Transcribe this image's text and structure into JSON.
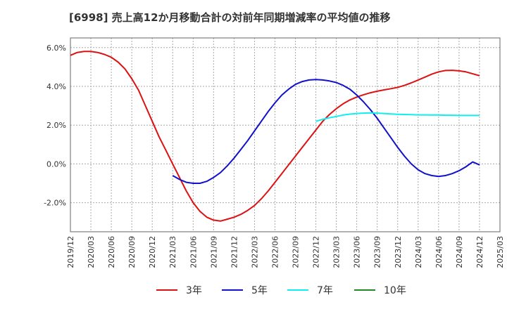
{
  "chart_data": {
    "type": "line",
    "title": "[6998]  売上高12か月移動合計の対前年同期増減率の平均値の推移",
    "xlabel": "",
    "ylabel": "",
    "ylim": [
      -3.5,
      6.5
    ],
    "grid": true,
    "legend_position": "bottom",
    "x_ticks": [
      "2019/12",
      "2020/03",
      "2020/06",
      "2020/09",
      "2020/12",
      "2021/03",
      "2021/06",
      "2021/09",
      "2021/12",
      "2022/03",
      "2022/06",
      "2022/09",
      "2022/12",
      "2023/03",
      "2023/06",
      "2023/09",
      "2023/12",
      "2024/03",
      "2024/06",
      "2024/09",
      "2024/12",
      "2025/03"
    ],
    "y_ticks": [
      {
        "value": 6,
        "label": "6.0%"
      },
      {
        "value": 4,
        "label": "4.0%"
      },
      {
        "value": 2,
        "label": "2.0%"
      },
      {
        "value": 0,
        "label": "0.0%"
      },
      {
        "value": -2,
        "label": "-2.0%"
      }
    ],
    "series": [
      {
        "name": "3年",
        "color": "#dd1111",
        "points": [
          [
            "2019/12",
            5.6
          ],
          [
            "2020/01",
            5.75
          ],
          [
            "2020/02",
            5.8
          ],
          [
            "2020/03",
            5.8
          ],
          [
            "2020/04",
            5.75
          ],
          [
            "2020/05",
            5.65
          ],
          [
            "2020/06",
            5.5
          ],
          [
            "2020/07",
            5.25
          ],
          [
            "2020/08",
            4.9
          ],
          [
            "2020/09",
            4.4
          ],
          [
            "2020/10",
            3.8
          ],
          [
            "2020/11",
            3.0
          ],
          [
            "2020/12",
            2.2
          ],
          [
            "2021/01",
            1.4
          ],
          [
            "2021/02",
            0.7
          ],
          [
            "2021/03",
            0.0
          ],
          [
            "2021/04",
            -0.7
          ],
          [
            "2021/05",
            -1.4
          ],
          [
            "2021/06",
            -2.0
          ],
          [
            "2021/07",
            -2.45
          ],
          [
            "2021/08",
            -2.75
          ],
          [
            "2021/09",
            -2.9
          ],
          [
            "2021/10",
            -2.95
          ],
          [
            "2021/11",
            -2.85
          ],
          [
            "2021/12",
            -2.75
          ],
          [
            "2022/01",
            -2.6
          ],
          [
            "2022/02",
            -2.4
          ],
          [
            "2022/03",
            -2.15
          ],
          [
            "2022/04",
            -1.8
          ],
          [
            "2022/05",
            -1.4
          ],
          [
            "2022/06",
            -0.95
          ],
          [
            "2022/07",
            -0.5
          ],
          [
            "2022/08",
            -0.05
          ],
          [
            "2022/09",
            0.4
          ],
          [
            "2022/10",
            0.85
          ],
          [
            "2022/11",
            1.3
          ],
          [
            "2022/12",
            1.75
          ],
          [
            "2023/01",
            2.2
          ],
          [
            "2023/02",
            2.55
          ],
          [
            "2023/03",
            2.85
          ],
          [
            "2023/04",
            3.1
          ],
          [
            "2023/05",
            3.3
          ],
          [
            "2023/06",
            3.45
          ],
          [
            "2023/07",
            3.57
          ],
          [
            "2023/08",
            3.67
          ],
          [
            "2023/09",
            3.75
          ],
          [
            "2023/10",
            3.82
          ],
          [
            "2023/11",
            3.88
          ],
          [
            "2023/12",
            3.95
          ],
          [
            "2024/01",
            4.05
          ],
          [
            "2024/02",
            4.18
          ],
          [
            "2024/03",
            4.33
          ],
          [
            "2024/04",
            4.48
          ],
          [
            "2024/05",
            4.63
          ],
          [
            "2024/06",
            4.75
          ],
          [
            "2024/07",
            4.82
          ],
          [
            "2024/08",
            4.83
          ],
          [
            "2024/09",
            4.8
          ],
          [
            "2024/10",
            4.75
          ],
          [
            "2024/11",
            4.65
          ],
          [
            "2024/12",
            4.55
          ]
        ]
      },
      {
        "name": "5年",
        "color": "#1111cc",
        "points": [
          [
            "2021/03",
            -0.6
          ],
          [
            "2021/04",
            -0.8
          ],
          [
            "2021/05",
            -0.95
          ],
          [
            "2021/06",
            -1.0
          ],
          [
            "2021/07",
            -1.0
          ],
          [
            "2021/08",
            -0.9
          ],
          [
            "2021/09",
            -0.7
          ],
          [
            "2021/10",
            -0.45
          ],
          [
            "2021/11",
            -0.1
          ],
          [
            "2021/12",
            0.3
          ],
          [
            "2022/01",
            0.75
          ],
          [
            "2022/02",
            1.2
          ],
          [
            "2022/03",
            1.7
          ],
          [
            "2022/04",
            2.2
          ],
          [
            "2022/05",
            2.7
          ],
          [
            "2022/06",
            3.15
          ],
          [
            "2022/07",
            3.55
          ],
          [
            "2022/08",
            3.85
          ],
          [
            "2022/09",
            4.1
          ],
          [
            "2022/10",
            4.25
          ],
          [
            "2022/11",
            4.33
          ],
          [
            "2022/12",
            4.35
          ],
          [
            "2023/01",
            4.33
          ],
          [
            "2023/02",
            4.28
          ],
          [
            "2023/03",
            4.2
          ],
          [
            "2023/04",
            4.05
          ],
          [
            "2023/05",
            3.85
          ],
          [
            "2023/06",
            3.55
          ],
          [
            "2023/07",
            3.2
          ],
          [
            "2023/08",
            2.8
          ],
          [
            "2023/09",
            2.35
          ],
          [
            "2023/10",
            1.85
          ],
          [
            "2023/11",
            1.35
          ],
          [
            "2023/12",
            0.85
          ],
          [
            "2024/01",
            0.4
          ],
          [
            "2024/02",
            0.0
          ],
          [
            "2024/03",
            -0.3
          ],
          [
            "2024/04",
            -0.5
          ],
          [
            "2024/05",
            -0.6
          ],
          [
            "2024/06",
            -0.65
          ],
          [
            "2024/07",
            -0.6
          ],
          [
            "2024/08",
            -0.5
          ],
          [
            "2024/09",
            -0.35
          ],
          [
            "2024/10",
            -0.15
          ],
          [
            "2024/11",
            0.1
          ],
          [
            "2024/12",
            -0.05
          ]
        ]
      },
      {
        "name": "7年",
        "color": "#11eeee",
        "points": [
          [
            "2022/12",
            2.2
          ],
          [
            "2023/01",
            2.3
          ],
          [
            "2023/02",
            2.38
          ],
          [
            "2023/03",
            2.45
          ],
          [
            "2023/04",
            2.52
          ],
          [
            "2023/05",
            2.57
          ],
          [
            "2023/06",
            2.6
          ],
          [
            "2023/07",
            2.62
          ],
          [
            "2023/08",
            2.63
          ],
          [
            "2023/09",
            2.62
          ],
          [
            "2023/10",
            2.6
          ],
          [
            "2023/11",
            2.58
          ],
          [
            "2023/12",
            2.56
          ],
          [
            "2024/01",
            2.55
          ],
          [
            "2024/02",
            2.54
          ],
          [
            "2024/03",
            2.53
          ],
          [
            "2024/04",
            2.53
          ],
          [
            "2024/05",
            2.52
          ],
          [
            "2024/06",
            2.52
          ],
          [
            "2024/07",
            2.51
          ],
          [
            "2024/08",
            2.51
          ],
          [
            "2024/09",
            2.5
          ],
          [
            "2024/10",
            2.5
          ],
          [
            "2024/11",
            2.5
          ],
          [
            "2024/12",
            2.5
          ]
        ]
      },
      {
        "name": "10年",
        "color": "#228822",
        "points": []
      }
    ]
  }
}
